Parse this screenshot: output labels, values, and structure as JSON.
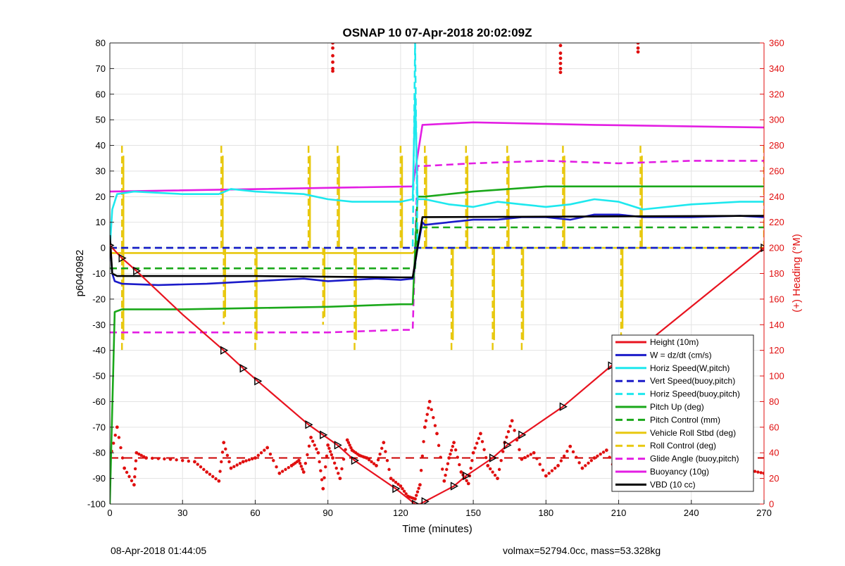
{
  "title": "OSNAP 10 07-Apr-2018 20:02:09Z",
  "footer": {
    "left": "08-Apr-2018 01:44:05",
    "right": "volmax=52794.0cc, mass=53.328kg"
  },
  "chart_data": {
    "type": "line",
    "title": "OSNAP 10 07-Apr-2018 20:02:09Z",
    "xlabel": "Time (minutes)",
    "ylabel": "p6040982",
    "y2label": "(+) Heading (°M)",
    "xlim": [
      0,
      270
    ],
    "ylim": [
      -100,
      80
    ],
    "y2lim": [
      0,
      360
    ],
    "xticks": [
      0,
      30,
      60,
      90,
      120,
      150,
      180,
      210,
      240,
      270
    ],
    "yticks": [
      -100,
      -90,
      -80,
      -70,
      -60,
      -50,
      -40,
      -30,
      -20,
      -10,
      0,
      10,
      20,
      30,
      40,
      50,
      60,
      70,
      80
    ],
    "y2ticks": [
      0,
      20,
      40,
      60,
      80,
      100,
      120,
      140,
      160,
      180,
      200,
      220,
      240,
      260,
      280,
      300,
      320,
      340,
      360
    ],
    "grid": true,
    "legend_position": "bottom-right",
    "colors": {
      "height": "#e8131f",
      "w": "#1b1bc9",
      "cyan": "#1ee8ee",
      "green": "#1aa81a",
      "yellow": "#e8c80f",
      "magenta": "#e31ee3",
      "black": "#000000",
      "heading": "#e00f0f"
    },
    "series": [
      {
        "name": "Height (10m)",
        "color": "#e8131f",
        "style": "solid",
        "x": [
          0,
          5,
          11,
          30,
          47,
          55,
          61,
          82,
          88,
          94,
          101,
          118,
          126,
          128,
          130,
          142,
          147,
          158,
          164,
          170,
          187,
          207,
          211,
          219,
          270
        ],
        "y": [
          1,
          -4,
          -9,
          -26,
          -40,
          -47,
          -52,
          -69,
          -73,
          -77,
          -83,
          -94,
          -100,
          -100,
          -99,
          -93,
          -89,
          -82,
          -77,
          -73,
          -62,
          -46,
          -44,
          -39,
          0
        ]
      },
      {
        "name": "W = dz/dt (cm/s)",
        "color": "#1b1bc9",
        "style": "solid",
        "x": [
          0,
          1,
          2,
          5,
          20,
          40,
          60,
          80,
          90,
          100,
          110,
          120,
          125,
          127,
          129,
          130,
          140,
          150,
          160,
          170,
          180,
          190,
          200,
          210,
          220,
          240,
          260,
          270
        ],
        "y": [
          3,
          -10,
          -13,
          -14,
          -14.5,
          -14,
          -13,
          -12,
          -13,
          -12.5,
          -12,
          -12.5,
          -12,
          0,
          10,
          9,
          10,
          11,
          11,
          12,
          12,
          11,
          13,
          13,
          12,
          12,
          12.5,
          12
        ]
      },
      {
        "name": "Horiz Speed(W,pitch)",
        "color": "#1ee8ee",
        "style": "solid",
        "x": [
          0,
          1,
          3,
          10,
          30,
          45,
          50,
          60,
          80,
          90,
          100,
          110,
          120,
          125,
          126,
          127,
          130,
          140,
          150,
          160,
          170,
          180,
          190,
          200,
          210,
          220,
          240,
          260,
          270
        ],
        "y": [
          0,
          15,
          21,
          22,
          21,
          21,
          23,
          22,
          21,
          19,
          18,
          18,
          18,
          19,
          60,
          19,
          19,
          17,
          16,
          18,
          17,
          16,
          17,
          19,
          18,
          15,
          17,
          18,
          18
        ]
      },
      {
        "name": "Vert Speed(buoy,pitch)",
        "color": "#1b1bc9",
        "style": "dashed",
        "x": [
          0,
          270
        ],
        "y": [
          0,
          0
        ]
      },
      {
        "name": "Horiz Speed(buoy,pitch)",
        "color": "#1ee8ee",
        "style": "dashed",
        "x": [
          0,
          125,
          126,
          127,
          270
        ],
        "y": [
          0,
          0,
          80,
          0,
          0
        ]
      },
      {
        "name": "Pitch Up (deg)",
        "color": "#1aa81a",
        "style": "solid",
        "x": [
          0,
          2,
          5,
          30,
          60,
          90,
          120,
          125,
          127,
          130,
          150,
          180,
          210,
          240,
          270
        ],
        "y": [
          -100,
          -25,
          -24,
          -24,
          -23.5,
          -23,
          -22,
          -22,
          20,
          20,
          22,
          24,
          24,
          24,
          24
        ]
      },
      {
        "name": "Pitch Control (mm)",
        "color": "#1aa81a",
        "style": "dashed",
        "x": [
          0,
          126,
          127,
          270
        ],
        "y": [
          -8,
          -8,
          8,
          8
        ]
      },
      {
        "name": "Vehicle Roll Stbd (deg)",
        "color": "#e8c80f",
        "style": "solid",
        "x": [
          0,
          125,
          127,
          270
        ],
        "y": [
          -2,
          -2,
          0,
          0
        ]
      },
      {
        "name": "Roll Control (deg)",
        "color": "#e8c80f",
        "style": "dashed",
        "x": [
          0,
          270
        ],
        "y": [
          0,
          0
        ]
      },
      {
        "name": "Glide Angle (buoy,pitch)",
        "color": "#e31ee3",
        "style": "dashed",
        "x": [
          0,
          30,
          60,
          90,
          120,
          125,
          127,
          130,
          150,
          180,
          210,
          240,
          270
        ],
        "y": [
          -33,
          -33,
          -33,
          -33,
          -32,
          -32,
          32,
          32,
          33,
          34,
          33,
          34,
          34
        ]
      },
      {
        "name": "Buoyancy (10g)",
        "color": "#e31ee3",
        "style": "solid",
        "x": [
          0,
          125,
          129,
          150,
          200,
          270
        ],
        "y": [
          22,
          24,
          48,
          49,
          48,
          47
        ]
      },
      {
        "name": "VBD (10 cc)",
        "color": "#000000",
        "style": "solid",
        "x": [
          0,
          1,
          3,
          60,
          120,
          125,
          129,
          130,
          270
        ],
        "y": [
          5,
          -10,
          -11,
          -11,
          -11.5,
          -11.5,
          12,
          12,
          12.5
        ]
      }
    ],
    "roll_spikes": [
      {
        "x": 5,
        "y": 40
      },
      {
        "x": 5,
        "y": -40
      },
      {
        "x": 46,
        "y": 40
      },
      {
        "x": 47,
        "y": -30
      },
      {
        "x": 60,
        "y": -40
      },
      {
        "x": 82,
        "y": 40
      },
      {
        "x": 88,
        "y": -30
      },
      {
        "x": 94,
        "y": 40
      },
      {
        "x": 101,
        "y": -40
      },
      {
        "x": 120,
        "y": 40
      },
      {
        "x": 130,
        "y": 40
      },
      {
        "x": 141,
        "y": -40
      },
      {
        "x": 147,
        "y": 40
      },
      {
        "x": 158,
        "y": -40
      },
      {
        "x": 164,
        "y": 40
      },
      {
        "x": 170,
        "y": -40
      },
      {
        "x": 187,
        "y": 40
      },
      {
        "x": 211,
        "y": -35
      },
      {
        "x": 219,
        "y": 40
      },
      {
        "x": 270,
        "y": 40
      }
    ],
    "height_markers": {
      "x": [
        0,
        5,
        11,
        47,
        55,
        61,
        82,
        88,
        94,
        101,
        118,
        126,
        130,
        142,
        147,
        158,
        164,
        170,
        187,
        207,
        211,
        219,
        270
      ],
      "y": [
        1,
        -4,
        -9,
        -40,
        -47,
        -52,
        -69,
        -73,
        -77,
        -83,
        -94,
        -100,
        -99,
        -93,
        -89,
        -82,
        -77,
        -73,
        -62,
        -46,
        -44,
        -39,
        0
      ]
    },
    "heading_reference": {
      "y2": 36,
      "color": "#cc0000",
      "style": "dashed"
    },
    "heading": {
      "name": "Heading",
      "axis": "right",
      "x": [
        0,
        3,
        6,
        10,
        11,
        15,
        25,
        35,
        40,
        45,
        47,
        50,
        55,
        60,
        65,
        70,
        75,
        78,
        80,
        83,
        86,
        88,
        90,
        92,
        95,
        98,
        100,
        103,
        106,
        110,
        113,
        116,
        120,
        123,
        126,
        128,
        130,
        132,
        135,
        138,
        140,
        142,
        145,
        148,
        150,
        153,
        156,
        160,
        163,
        166,
        170,
        175,
        180,
        185,
        190,
        195,
        200,
        205,
        210,
        215,
        220,
        225,
        230,
        235,
        240,
        245,
        250,
        255,
        260,
        265,
        270
      ],
      "y": [
        35,
        60,
        28,
        15,
        40,
        36,
        35,
        33,
        25,
        18,
        48,
        28,
        33,
        36,
        44,
        24,
        30,
        34,
        25,
        52,
        40,
        12,
        46,
        36,
        20,
        50,
        42,
        38,
        36,
        30,
        48,
        20,
        14,
        6,
        4,
        15,
        60,
        80,
        55,
        18,
        36,
        48,
        25,
        16,
        40,
        55,
        30,
        20,
        48,
        65,
        35,
        40,
        22,
        30,
        45,
        28,
        36,
        42,
        20,
        48,
        28,
        38,
        32,
        25,
        40,
        34,
        28,
        32,
        22,
        26,
        24
      ]
    },
    "heading_top_clusters": [
      {
        "x": 92,
        "y2": [
          360,
          356,
          350,
          345,
          340,
          338
        ]
      },
      {
        "x": 186,
        "y2": [
          358,
          352,
          348,
          344,
          340,
          337
        ]
      },
      {
        "x": 218,
        "y2": [
          360,
          356,
          353
        ]
      }
    ]
  }
}
